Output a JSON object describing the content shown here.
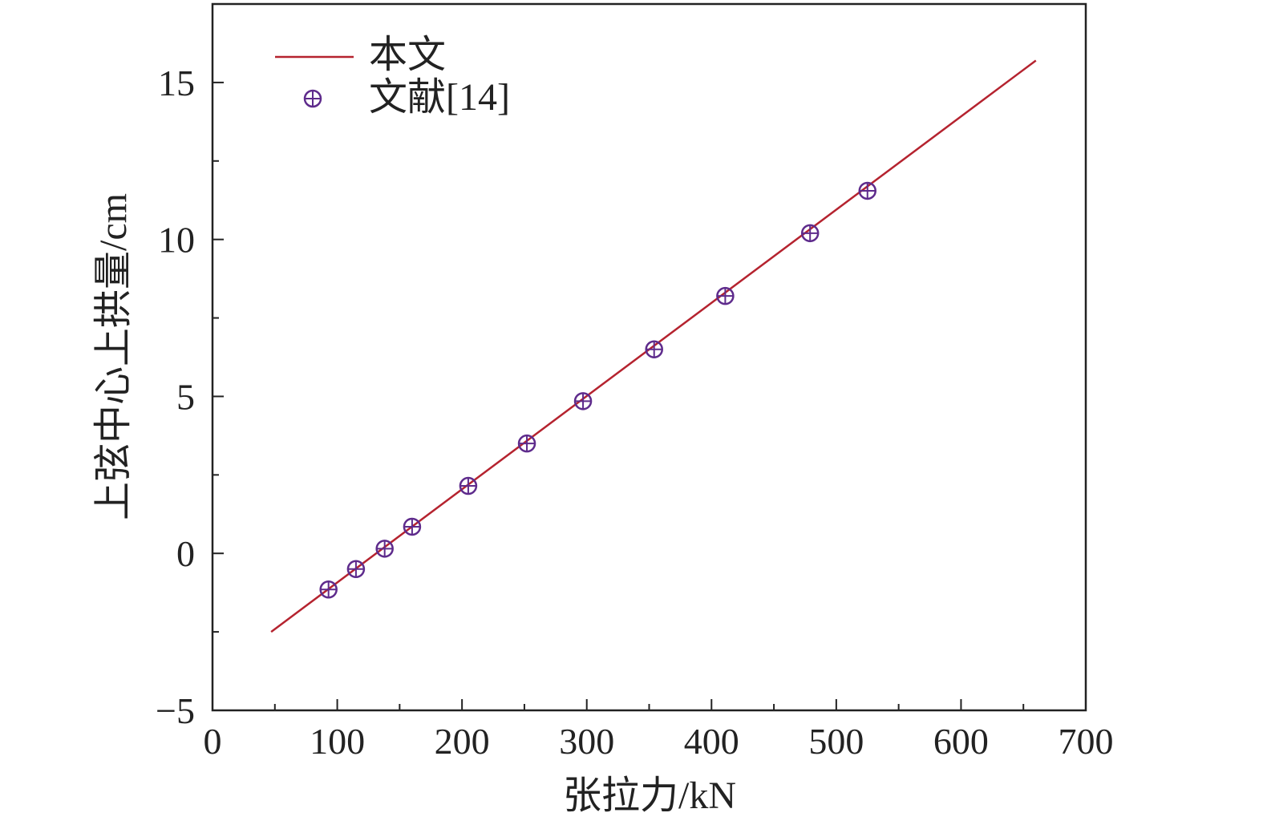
{
  "chart_data": {
    "type": "scatter",
    "title": "",
    "xlabel": "张拉力/kN",
    "ylabel": "上弦中心上拱量/cm",
    "xlim": [
      0,
      700
    ],
    "ylim": [
      -5,
      17.5
    ],
    "x_ticks": [
      0,
      100,
      200,
      300,
      400,
      500,
      600,
      700
    ],
    "x_tick_labels": [
      "0",
      "100",
      "200",
      "300",
      "400",
      "500",
      "600",
      "700"
    ],
    "y_ticks": [
      -5,
      0,
      5,
      10,
      15
    ],
    "y_tick_labels": [
      "−5",
      "0",
      "5",
      "10",
      "15"
    ],
    "grid": false,
    "legend_position": "top-left",
    "series": [
      {
        "name": "本文",
        "type": "line",
        "color": "#b5232f",
        "x": [
          47,
          660
        ],
        "y": [
          -2.5,
          15.7
        ]
      },
      {
        "name": "文献[14]",
        "type": "scatter",
        "marker": "circle-plus",
        "color": "#5e2b8c",
        "x": [
          93,
          115,
          138,
          160,
          205,
          252,
          297,
          354,
          411,
          479,
          525
        ],
        "y": [
          -1.15,
          -0.5,
          0.15,
          0.85,
          2.15,
          3.5,
          4.85,
          6.5,
          8.2,
          10.2,
          11.55
        ]
      }
    ]
  }
}
